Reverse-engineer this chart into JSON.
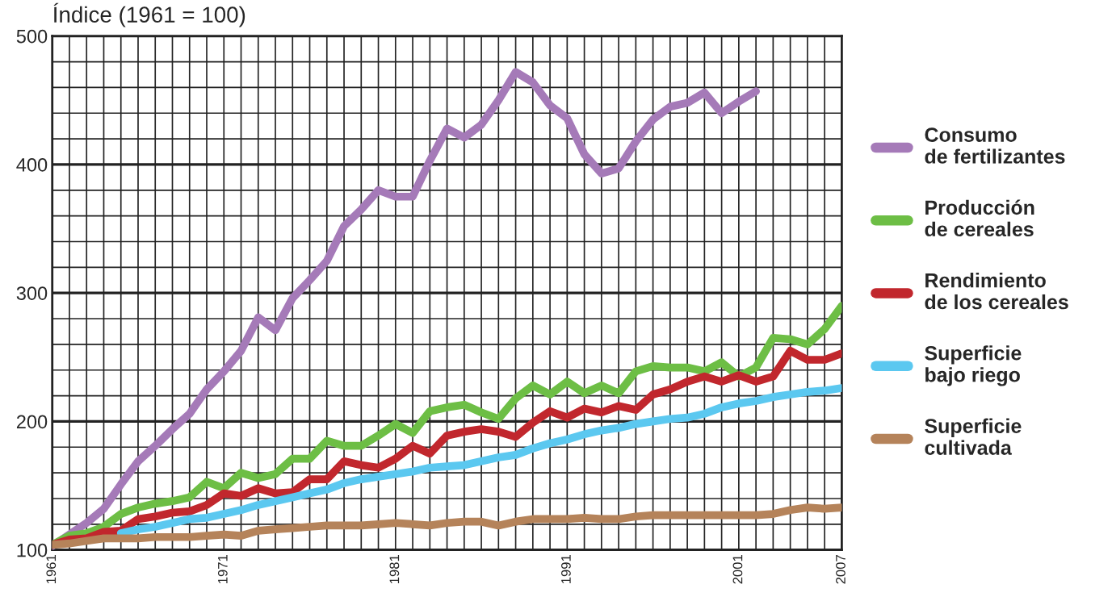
{
  "chart_data": {
    "type": "line",
    "title": "Índice (1961 = 100)",
    "x": [
      1961,
      1962,
      1963,
      1964,
      1965,
      1966,
      1967,
      1968,
      1969,
      1970,
      1971,
      1972,
      1973,
      1974,
      1975,
      1976,
      1977,
      1978,
      1979,
      1980,
      1981,
      1982,
      1983,
      1984,
      1985,
      1986,
      1987,
      1988,
      1989,
      1990,
      1991,
      1992,
      1993,
      1994,
      1995,
      1996,
      1997,
      1998,
      1999,
      2000,
      2001,
      2002,
      2003,
      2004,
      2005,
      2006,
      2007
    ],
    "series": [
      {
        "name": "Consumo\nde fertilizantes",
        "color": "#a57ab8",
        "values": [
          103,
          112,
          121,
          132,
          151,
          169,
          181,
          194,
          206,
          225,
          239,
          255,
          281,
          271,
          296,
          310,
          325,
          352,
          365,
          380,
          375,
          375,
          403,
          428,
          421,
          431,
          450,
          472,
          464,
          446,
          436,
          408,
          393,
          397,
          418,
          435,
          445,
          448,
          456,
          440,
          449,
          457,
          null,
          null,
          null,
          null,
          null
        ]
      },
      {
        "name": "Producción\nde cereales",
        "color": "#6dbe45",
        "values": [
          104,
          111,
          113,
          118,
          128,
          133,
          136,
          138,
          141,
          153,
          148,
          160,
          156,
          159,
          171,
          171,
          185,
          181,
          181,
          189,
          198,
          191,
          208,
          211,
          213,
          207,
          202,
          218,
          228,
          221,
          231,
          222,
          228,
          222,
          239,
          243,
          242,
          242,
          239,
          246,
          235,
          242,
          265,
          264,
          260,
          272,
          290
        ]
      },
      {
        "name": "Rendimiento\nde los cereales",
        "color": "#c1272d",
        "values": [
          104,
          108,
          109,
          114,
          115,
          124,
          126,
          129,
          130,
          135,
          144,
          142,
          148,
          144,
          145,
          155,
          155,
          169,
          166,
          164,
          171,
          181,
          175,
          189,
          192,
          194,
          192,
          188,
          199,
          208,
          203,
          210,
          207,
          212,
          209,
          221,
          225,
          231,
          235,
          231,
          236,
          231,
          235,
          255,
          248,
          248,
          253
        ]
      },
      {
        "name": "Superficie\nbajo riego",
        "color": "#5bc8f0",
        "values": [
          null,
          null,
          null,
          null,
          113,
          116,
          118,
          121,
          124,
          125,
          128,
          131,
          135,
          138,
          141,
          144,
          147,
          152,
          155,
          157,
          159,
          161,
          164,
          165,
          166,
          169,
          172,
          174,
          179,
          183,
          186,
          190,
          193,
          195,
          198,
          200,
          202,
          203,
          206,
          211,
          214,
          216,
          219,
          221,
          223,
          224,
          226
        ]
      },
      {
        "name": "Superficie\ncultivada",
        "color": "#b5835a",
        "values": [
          104,
          105,
          107,
          109,
          109,
          109,
          110,
          110,
          110,
          111,
          112,
          111,
          115,
          116,
          117,
          118,
          119,
          119,
          119,
          120,
          121,
          120,
          119,
          121,
          122,
          122,
          119,
          122,
          124,
          124,
          124,
          125,
          124,
          124,
          126,
          127,
          127,
          127,
          127,
          127,
          127,
          127,
          128,
          131,
          133,
          132,
          133
        ]
      }
    ],
    "xlim": [
      1961,
      2007
    ],
    "xticks": [
      1961,
      {
        "value": 1962,
        "label": null
      },
      {
        "value": 1963,
        "label": null
      },
      {
        "value": 1964,
        "label": null
      },
      {
        "value": 1965,
        "label": null
      },
      {
        "value": 1966,
        "label": null
      },
      {
        "value": 1967,
        "label": null
      },
      {
        "value": 1968,
        "label": null
      },
      {
        "value": 1969,
        "label": null
      },
      {
        "value": 1970,
        "label": null
      },
      1971,
      {
        "value": 1972,
        "label": null
      },
      {
        "value": 1973,
        "label": null
      },
      {
        "value": 1974,
        "label": null
      },
      {
        "value": 1975,
        "label": null
      },
      {
        "value": 1976,
        "label": null
      },
      {
        "value": 1977,
        "label": null
      },
      {
        "value": 1978,
        "label": null
      },
      {
        "value": 1979,
        "label": null
      },
      {
        "value": 1980,
        "label": null
      },
      1981,
      {
        "value": 1982,
        "label": null
      },
      {
        "value": 1983,
        "label": null
      },
      {
        "value": 1984,
        "label": null
      },
      {
        "value": 1985,
        "label": null
      },
      {
        "value": 1986,
        "label": null
      },
      {
        "value": 1987,
        "label": null
      },
      {
        "value": 1988,
        "label": null
      },
      {
        "value": 1989,
        "label": null
      },
      {
        "value": 1990,
        "label": null
      },
      1991,
      {
        "value": 1992,
        "label": null
      },
      {
        "value": 1993,
        "label": null
      },
      {
        "value": 1994,
        "label": null
      },
      {
        "value": 1995,
        "label": null
      },
      {
        "value": 1996,
        "label": null
      },
      {
        "value": 1997,
        "label": null
      },
      {
        "value": 1998,
        "label": null
      },
      {
        "value": 1999,
        "label": null
      },
      {
        "value": 2000,
        "label": null
      },
      2001,
      {
        "value": 2002,
        "label": null
      },
      {
        "value": 2003,
        "label": null
      },
      {
        "value": 2004,
        "label": null
      },
      {
        "value": 2005,
        "label": null
      },
      {
        "value": 2006,
        "label": null
      },
      2007
    ],
    "ylim": [
      100,
      500
    ],
    "yticks": [
      100,
      {
        "value": 120,
        "label": null
      },
      {
        "value": 140,
        "label": null
      },
      {
        "value": 160,
        "label": null
      },
      {
        "value": 180,
        "label": null
      },
      200,
      {
        "value": 220,
        "label": null
      },
      {
        "value": 240,
        "label": null
      },
      {
        "value": 260,
        "label": null
      },
      {
        "value": 280,
        "label": null
      },
      300,
      {
        "value": 320,
        "label": null
      },
      {
        "value": 340,
        "label": null
      },
      {
        "value": 360,
        "label": null
      },
      {
        "value": 380,
        "label": null
      },
      400,
      {
        "value": 420,
        "label": null
      },
      {
        "value": 440,
        "label": null
      },
      {
        "value": 460,
        "label": null
      },
      {
        "value": 480,
        "label": null
      },
      500
    ],
    "grid": true,
    "legend": "right",
    "marker": "none",
    "line_style": "solid"
  }
}
